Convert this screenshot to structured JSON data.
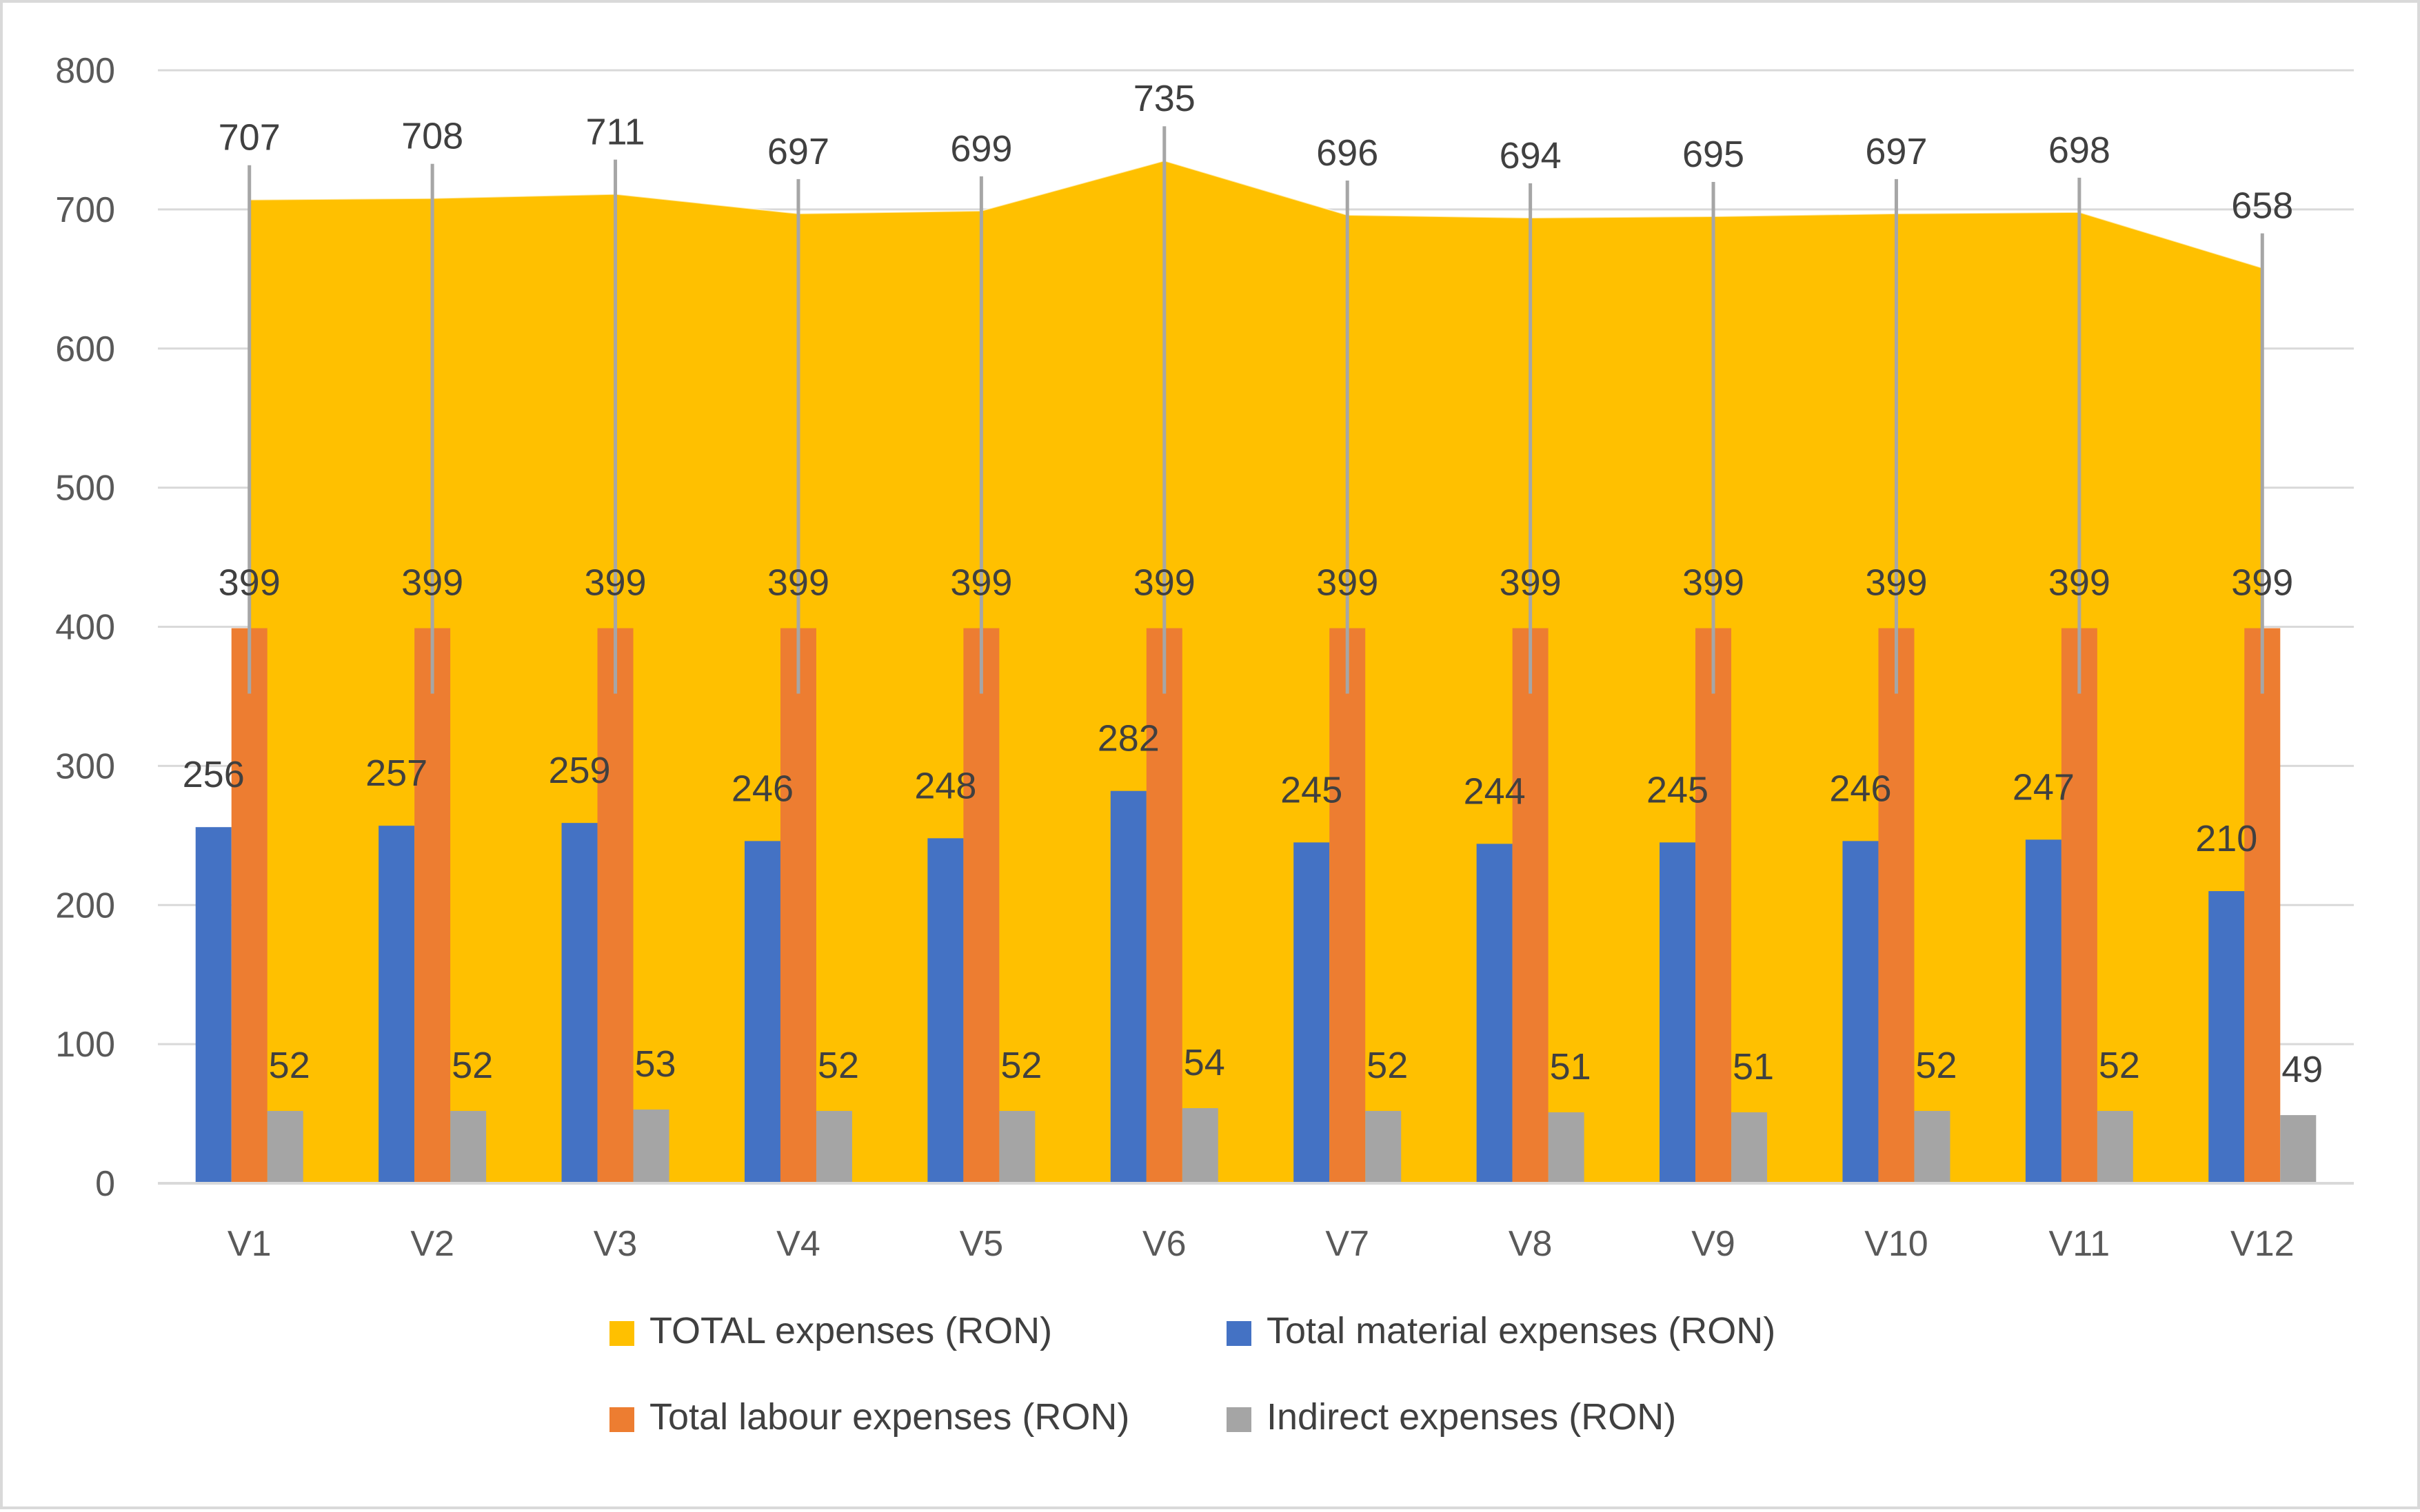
{
  "chart_data": {
    "type": "bar",
    "title": "",
    "xlabel": "",
    "ylabel": "",
    "ylim": [
      0,
      800
    ],
    "yticks": [
      0,
      100,
      200,
      300,
      400,
      500,
      600,
      700,
      800
    ],
    "grid": true,
    "legend_position": "bottom",
    "categories": [
      "V1",
      "V2",
      "V3",
      "V4",
      "V5",
      "V6",
      "V7",
      "V8",
      "V9",
      "V10",
      "V11",
      "V12"
    ],
    "series": [
      {
        "name": "TOTAL expenses (RON)",
        "kind": "area",
        "color": "#FFC000",
        "values": [
          707,
          708,
          711,
          697,
          699,
          735,
          696,
          694,
          695,
          697,
          698,
          658
        ]
      },
      {
        "name": "Total material expenses (RON)",
        "kind": "bar",
        "color": "#4472C4",
        "values": [
          256,
          257,
          259,
          246,
          248,
          282,
          245,
          244,
          245,
          246,
          247,
          210
        ]
      },
      {
        "name": "Total labour expenses (RON)",
        "kind": "bar",
        "color": "#ED7D31",
        "values": [
          399,
          399,
          399,
          399,
          399,
          399,
          399,
          399,
          399,
          399,
          399,
          399
        ]
      },
      {
        "name": "Indirect expenses (RON)",
        "kind": "bar",
        "color": "#A5A5A5",
        "values": [
          52,
          52,
          53,
          52,
          52,
          54,
          52,
          51,
          51,
          52,
          52,
          49
        ]
      }
    ]
  }
}
